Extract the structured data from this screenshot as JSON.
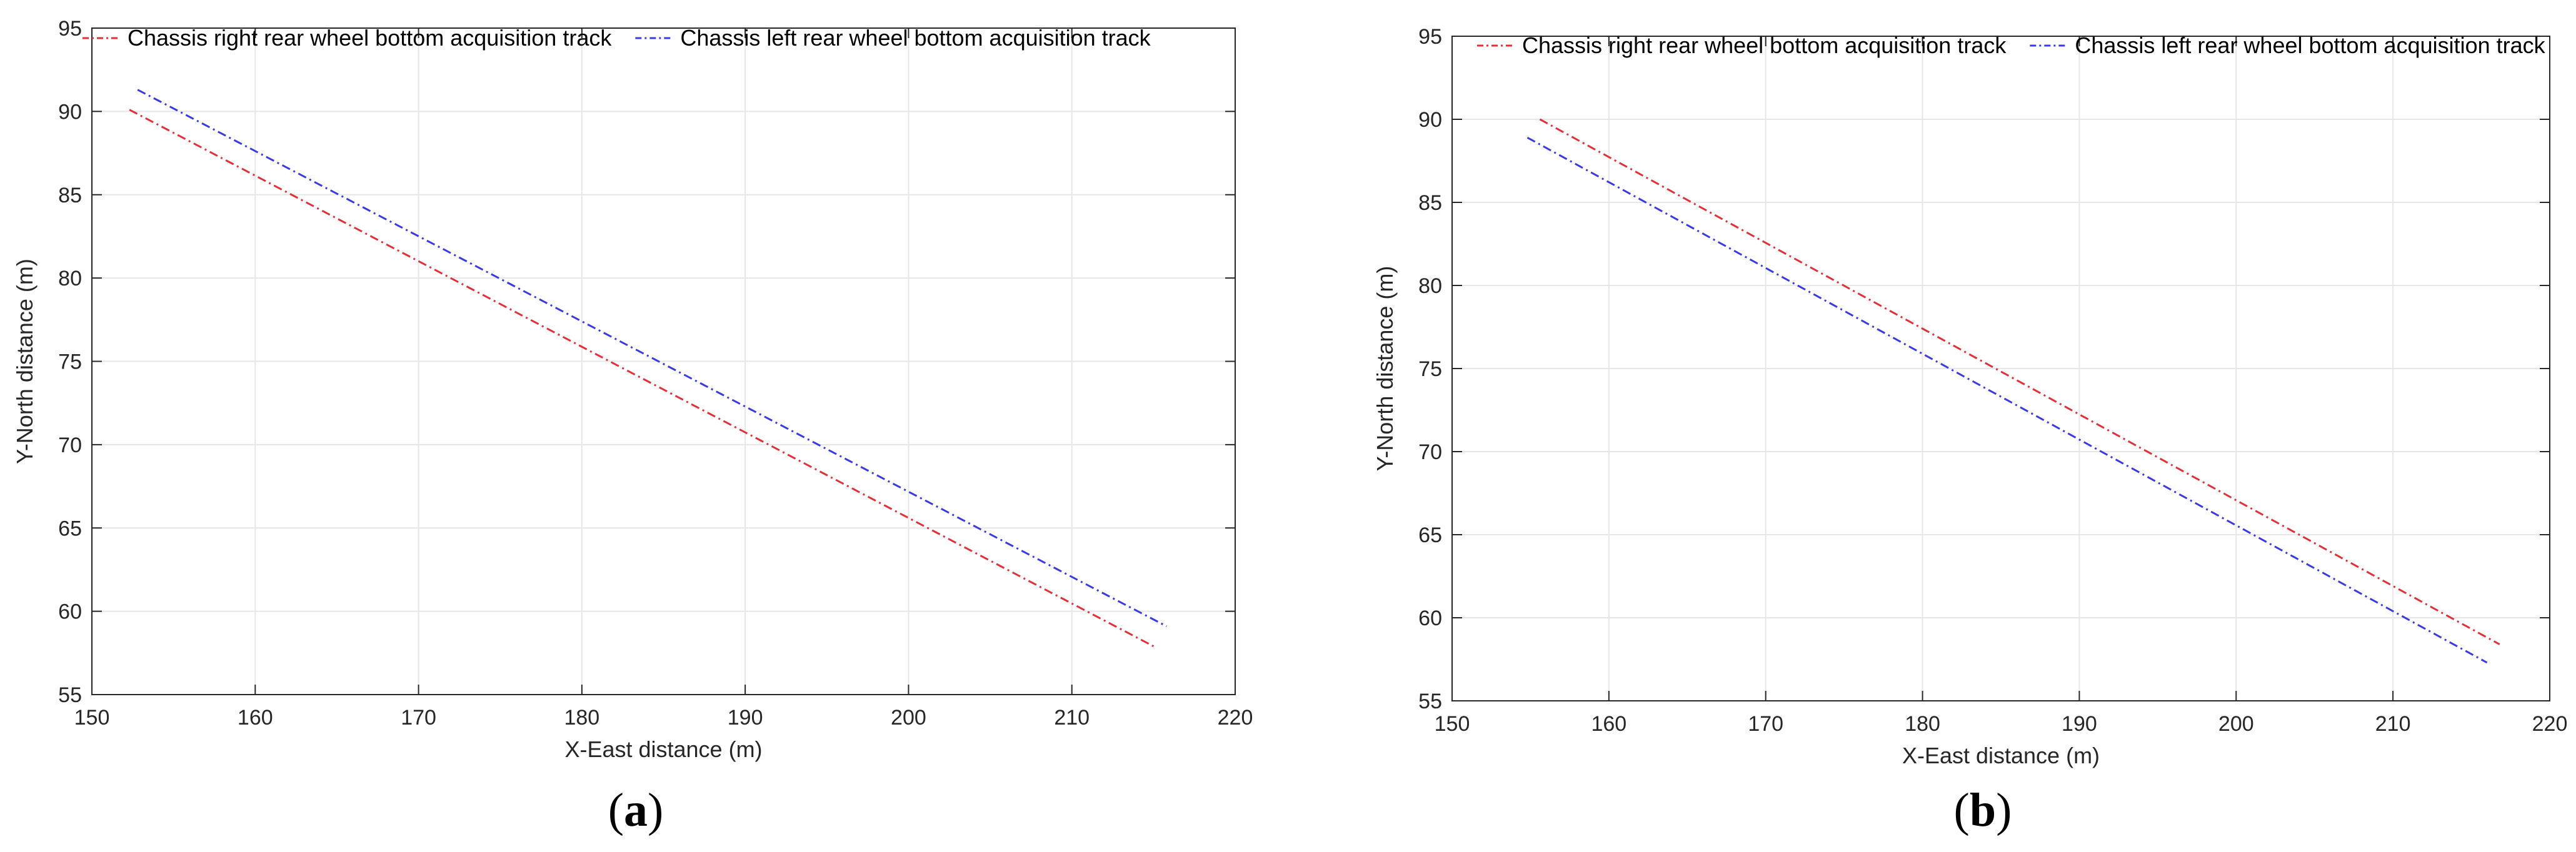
{
  "chart_data": [
    {
      "type": "line",
      "caption": "(a)",
      "caption_letter": "a",
      "xlabel": "X-East distance (m)",
      "ylabel": "Y-North distance (m)",
      "xlim": [
        150,
        220
      ],
      "ylim": [
        55,
        95
      ],
      "xticks": [
        "150",
        "160",
        "170",
        "180",
        "190",
        "200",
        "210",
        "220"
      ],
      "yticks": [
        "55",
        "60",
        "65",
        "70",
        "75",
        "80",
        "85",
        "90",
        "95"
      ],
      "grid": true,
      "legend_position": "top",
      "series": [
        {
          "name": "Chassis right rear wheel bottom acquisition track",
          "color": "#e0303a",
          "x": [
            152.3,
            215.0
          ],
          "y": [
            90.1,
            57.9
          ]
        },
        {
          "name": "Chassis left rear wheel bottom acquisition track",
          "color": "#3a3ae0",
          "x": [
            152.8,
            215.8
          ],
          "y": [
            91.3,
            59.1
          ]
        }
      ]
    },
    {
      "type": "line",
      "caption": "(b)",
      "caption_letter": "b",
      "xlabel": "X-East distance (m)",
      "ylabel": "Y-North distance (m)",
      "xlim": [
        150,
        220
      ],
      "ylim": [
        55,
        95
      ],
      "xticks": [
        "150",
        "160",
        "170",
        "180",
        "190",
        "200",
        "210",
        "220"
      ],
      "yticks": [
        "55",
        "60",
        "65",
        "70",
        "75",
        "80",
        "85",
        "90",
        "95"
      ],
      "grid": true,
      "legend_position": "top",
      "series": [
        {
          "name": "Chassis right rear wheel bottom acquisition track",
          "color": "#e0303a",
          "x": [
            155.6,
            216.8
          ],
          "y": [
            90.0,
            58.4
          ]
        },
        {
          "name": "Chassis left rear wheel bottom acquisition track",
          "color": "#3a3ae0",
          "x": [
            154.8,
            216.0
          ],
          "y": [
            88.9,
            57.3
          ]
        }
      ]
    }
  ]
}
